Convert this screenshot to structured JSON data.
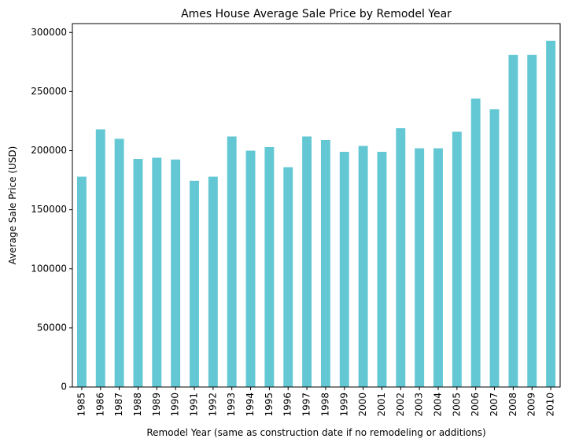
{
  "chart_data": {
    "type": "bar",
    "title": "Ames House Average Sale Price by Remodel Year",
    "xlabel": "Remodel Year (same as construction date if no remodeling or additions)",
    "ylabel": "Average Sale Price (USD)",
    "categories": [
      "1985",
      "1986",
      "1987",
      "1988",
      "1989",
      "1990",
      "1991",
      "1992",
      "1993",
      "1994",
      "1995",
      "1996",
      "1997",
      "1998",
      "1999",
      "2000",
      "2001",
      "2002",
      "2003",
      "2004",
      "2005",
      "2006",
      "2007",
      "2008",
      "2009",
      "2010"
    ],
    "values": [
      178000,
      218000,
      210000,
      193000,
      194000,
      192500,
      174500,
      178000,
      212000,
      200000,
      203000,
      186000,
      212000,
      209000,
      199000,
      204000,
      199000,
      219000,
      202000,
      202000,
      216000,
      244000,
      235000,
      281000,
      281000,
      293000
    ],
    "ylim": [
      0,
      307500
    ],
    "yticks": [
      0,
      50000,
      100000,
      150000,
      200000,
      250000,
      300000
    ],
    "bar_color": "#64c8d4",
    "grid": false,
    "legend": "none"
  }
}
